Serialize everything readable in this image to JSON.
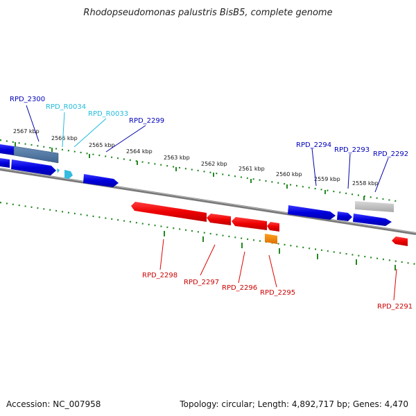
{
  "title": "Rhodopseudomonas palustris BisB5, complete genome",
  "footer": {
    "accession": "Accession: NC_007958",
    "topology": "Topology: circular; Length: 4,892,717 bp; Genes: 4,470"
  },
  "kbp_labels": {
    "k2567": "2567 kbp",
    "k2566": "2566 kbp",
    "k2565": "2565 kbp",
    "k2564": "2564 kbp",
    "k2563": "2563 kbp",
    "k2562": "2562 kbp",
    "k2561": "2561 kbp",
    "k2560": "2560 kbp",
    "k2559": "2559 kbp",
    "k2558": "2558 kbp"
  },
  "gene_labels": {
    "RPD_2300": "RPD_2300",
    "RPD_R0034": "RPD_R0034",
    "RPD_R0033": "RPD_R0033",
    "RPD_2299": "RPD_2299",
    "RPD_2294": "RPD_2294",
    "RPD_2293": "RPD_2293",
    "RPD_2292": "RPD_2292",
    "RPD_2298": "RPD_2298",
    "RPD_2297": "RPD_2297",
    "RPD_2296": "RPD_2296",
    "RPD_2295": "RPD_2295",
    "RPD_2291": "RPD_2291"
  },
  "colors": {
    "forward_gene": "#0000ee",
    "reverse_gene": "#ee0000",
    "rna_gene": "#22bbdd",
    "pseudo_gene": "#b0b0b0",
    "other_gene": "#ee8800",
    "backbone": "#7a7a7a",
    "ticks": "#228822"
  }
}
